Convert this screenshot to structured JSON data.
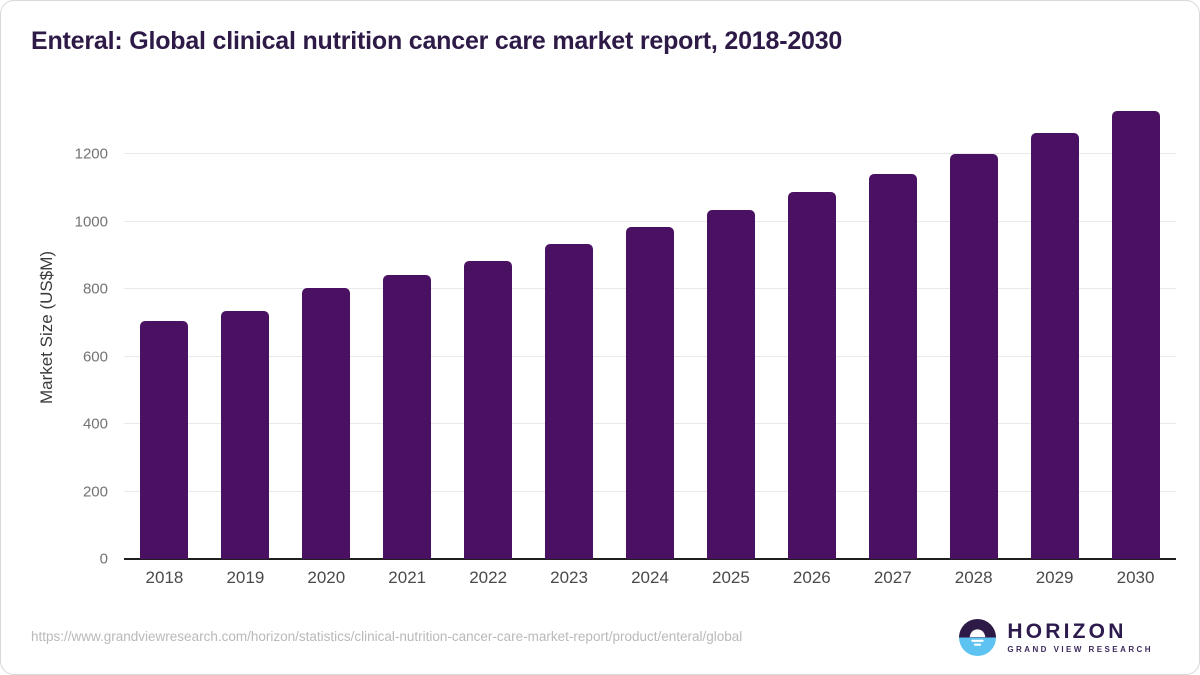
{
  "header": {
    "title": "Enteral: Global clinical nutrition cancer care market report, 2018-2030"
  },
  "chart_data": {
    "type": "bar",
    "categories": [
      "2018",
      "2019",
      "2020",
      "2021",
      "2022",
      "2023",
      "2024",
      "2025",
      "2026",
      "2027",
      "2028",
      "2029",
      "2030"
    ],
    "values": [
      705,
      736,
      804,
      841,
      884,
      934,
      985,
      1035,
      1089,
      1142,
      1201,
      1262,
      1327
    ],
    "title": "Enteral: Global clinical nutrition cancer care market report, 2018-2030",
    "xlabel": "",
    "ylabel": "Market Size (US$M)",
    "ylim": [
      0,
      1372
    ],
    "yticks": [
      0,
      200,
      400,
      600,
      800,
      1000,
      1200
    ],
    "grid": true,
    "legend": "none",
    "bar_color": "#4a1162"
  },
  "footer": {
    "source_url": "https://www.grandviewresearch.com/horizon/statistics/clinical-nutrition-cancer-care-market-report/product/enteral/global",
    "logo": {
      "name": "HORIZON",
      "tagline": "GRAND VIEW RESEARCH",
      "mark_top_color": "#2e1a47",
      "mark_bottom_color": "#5ec3f0",
      "sun_icon_color": "#ffffff"
    }
  },
  "colors": {
    "title_text": "#2e1a47",
    "bar": "#4a1162",
    "gridline": "#e9e9e9",
    "axis_line": "#1f1f1f",
    "y_tick_text": "#737373",
    "x_tick_text": "#4a4a4a",
    "url_text": "#b9b9b9",
    "background": "#ffffff"
  }
}
